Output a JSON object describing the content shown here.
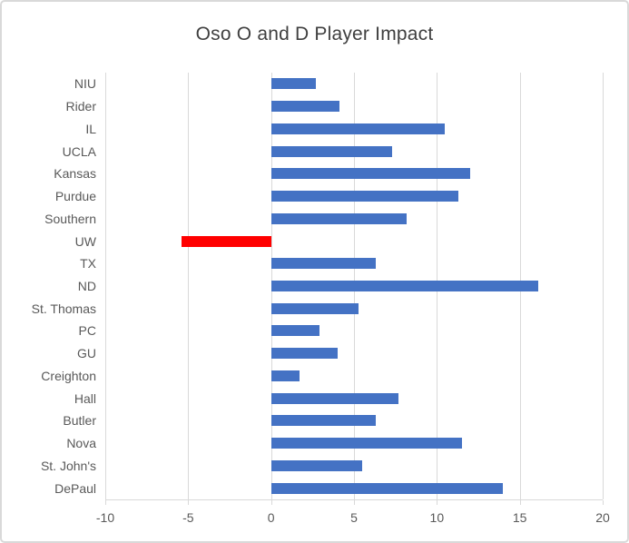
{
  "chart_data": {
    "type": "bar",
    "orientation": "horizontal",
    "title": "Oso O and D Player Impact",
    "categories": [
      "NIU",
      "Rider",
      "IL",
      "UCLA",
      "Kansas",
      "Purdue",
      "Southern",
      "UW",
      "TX",
      "ND",
      "St. Thomas",
      "PC",
      "GU",
      "Creighton",
      "Hall",
      "Butler",
      "Nova",
      "St. John's",
      "DePaul"
    ],
    "values": [
      2.7,
      4.1,
      10.5,
      7.3,
      12,
      11.3,
      8.2,
      -5.4,
      6.3,
      16.1,
      5.3,
      2.9,
      4,
      1.7,
      7.7,
      6.3,
      11.5,
      5.5,
      14
    ],
    "xlim": [
      -10,
      20
    ],
    "x_ticks": [
      -10,
      -5,
      0,
      5,
      10,
      15,
      20
    ],
    "bar_color": "#4472C4",
    "highlight": {
      "category": "UW",
      "color": "#FF0000"
    },
    "gridline_color": "#D9D9D9",
    "axis_label_color": "#595959",
    "title_color": "#404040",
    "grid": true,
    "legend": false
  }
}
